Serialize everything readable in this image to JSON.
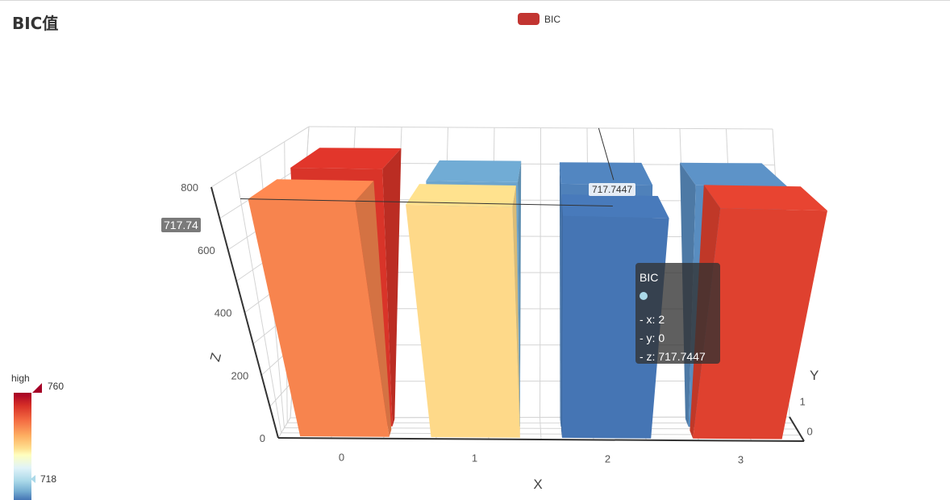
{
  "title": "BIC值",
  "legend": {
    "label": "BIC",
    "color": "#c23531"
  },
  "visual_map": {
    "high_text": "high",
    "max_label": "760",
    "min_label": "718",
    "max_color": "#a50026"
  },
  "tooltip": {
    "series": "BIC",
    "dot_color": "#abd9e9",
    "x_line": "- x: 2",
    "y_line": "- y: 0",
    "z_line": "- z: 717.7447"
  },
  "axis_pointer": {
    "z_value": "717.74",
    "bar_value": "717.7447"
  },
  "chart_data": {
    "type": "bar3d",
    "title": "BIC值",
    "x_axis": {
      "name": "X",
      "ticks": [
        "0",
        "1",
        "2",
        "3"
      ]
    },
    "y_axis": {
      "name": "Y",
      "ticks": [
        "0",
        "1"
      ]
    },
    "z_axis": {
      "name": "Z",
      "ticks": [
        "0",
        "200",
        "400",
        "600",
        "800"
      ],
      "range": [
        0,
        800
      ]
    },
    "series": [
      {
        "name": "BIC"
      }
    ],
    "visual_map": {
      "min": 718,
      "max": 760
    },
    "bars": [
      {
        "x": 0,
        "y": 1,
        "value": 755
      },
      {
        "x": 0,
        "y": 0,
        "value": 749
      },
      {
        "x": 1,
        "y": 1,
        "value": 722
      },
      {
        "x": 1,
        "y": 0,
        "value": 742
      },
      {
        "x": 2,
        "y": 1,
        "value": 719
      },
      {
        "x": 2,
        "y": 0,
        "value": 717.7447
      },
      {
        "x": 3,
        "y": 1,
        "value": 720
      },
      {
        "x": 3,
        "y": 0,
        "value": 754
      }
    ]
  }
}
